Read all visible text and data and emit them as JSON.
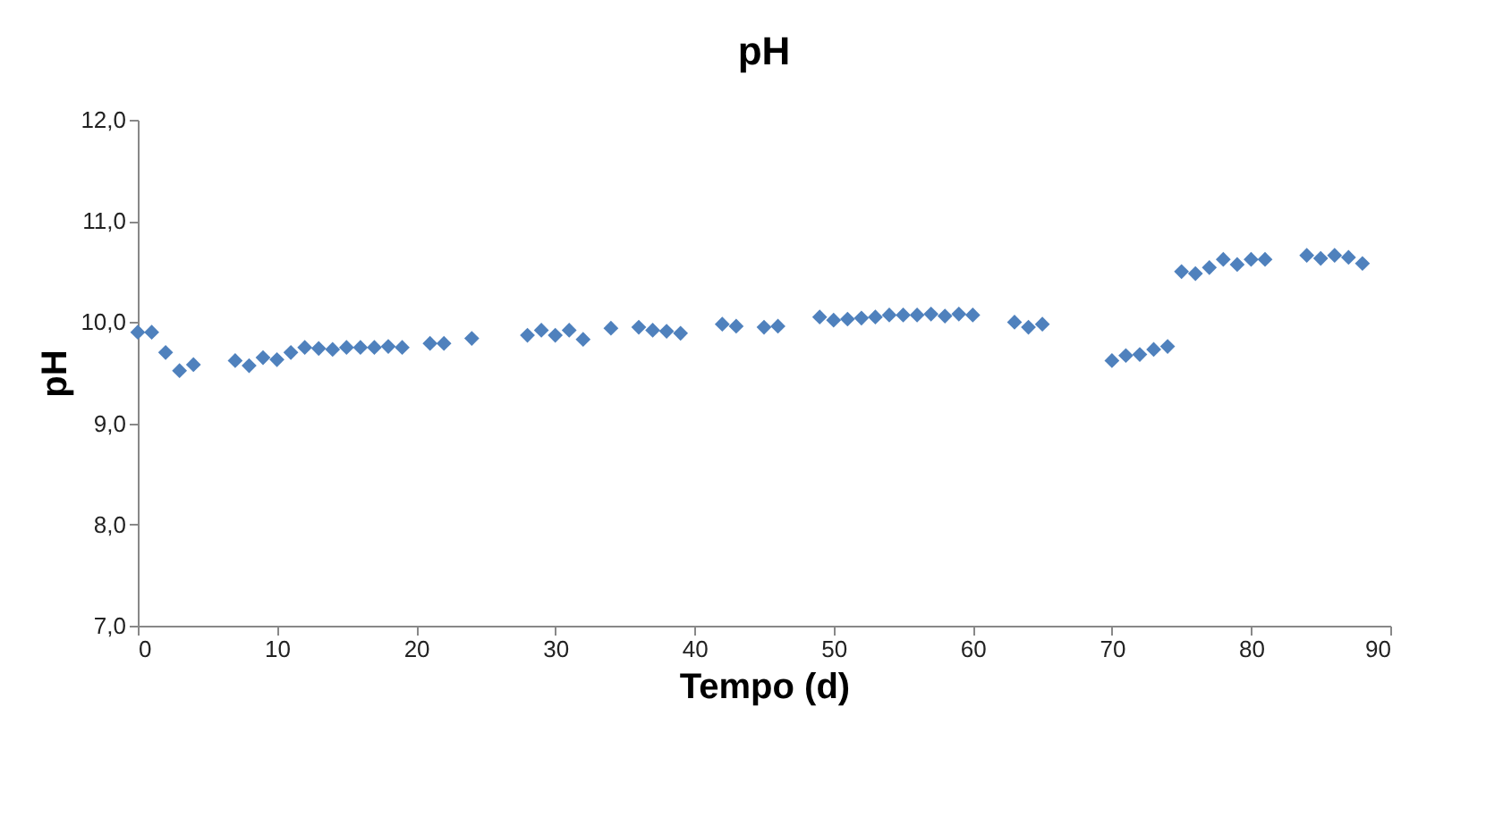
{
  "chart_data": {
    "type": "scatter",
    "title": "pH",
    "xlabel": "Tempo (d)",
    "ylabel": "pH",
    "marker": "diamond",
    "grid": false,
    "xlim": [
      0,
      90
    ],
    "xticks": [
      0,
      10,
      20,
      30,
      40,
      50,
      60,
      70,
      80,
      90
    ],
    "ylim": [
      7,
      12
    ],
    "yticks": [
      {
        "value": 7,
        "label": "7,0"
      },
      {
        "value": 8,
        "label": "8,0"
      },
      {
        "value": 9,
        "label": "9,0"
      },
      {
        "value": 10,
        "label": "10,0"
      },
      {
        "value": 11,
        "label": "11,0"
      },
      {
        "value": 12,
        "label": "12,0"
      }
    ],
    "series": [
      {
        "color": "#4f81bd",
        "x": [
          0,
          1,
          2,
          3,
          4,
          7,
          8,
          9,
          10,
          11,
          12,
          13,
          14,
          15,
          16,
          17,
          18,
          19,
          21,
          22,
          24,
          28,
          29,
          30,
          31,
          32,
          34,
          36,
          37,
          38,
          39,
          42,
          43,
          45,
          46,
          49,
          50,
          51,
          52,
          53,
          54,
          55,
          56,
          57,
          58,
          59,
          60,
          63,
          64,
          65,
          70,
          71,
          72,
          73,
          74,
          75,
          76,
          77,
          78,
          79,
          80,
          81,
          84,
          85,
          86,
          87,
          88
        ],
        "values": [
          9.9,
          9.9,
          9.7,
          9.52,
          9.58,
          9.62,
          9.57,
          9.65,
          9.63,
          9.7,
          9.75,
          9.74,
          9.73,
          9.75,
          9.75,
          9.75,
          9.76,
          9.75,
          9.79,
          9.79,
          9.84,
          9.87,
          9.92,
          9.87,
          9.92,
          9.83,
          9.94,
          9.95,
          9.92,
          9.91,
          9.89,
          9.98,
          9.96,
          9.95,
          9.96,
          10.05,
          10.02,
          10.03,
          10.04,
          10.05,
          10.07,
          10.07,
          10.07,
          10.08,
          10.06,
          10.08,
          10.07,
          10.0,
          9.95,
          9.98,
          9.62,
          9.67,
          9.68,
          9.73,
          9.76,
          10.5,
          10.48,
          10.54,
          10.62,
          10.57,
          10.62,
          10.62,
          10.66,
          10.63,
          10.66,
          10.64,
          10.58
        ]
      }
    ]
  }
}
